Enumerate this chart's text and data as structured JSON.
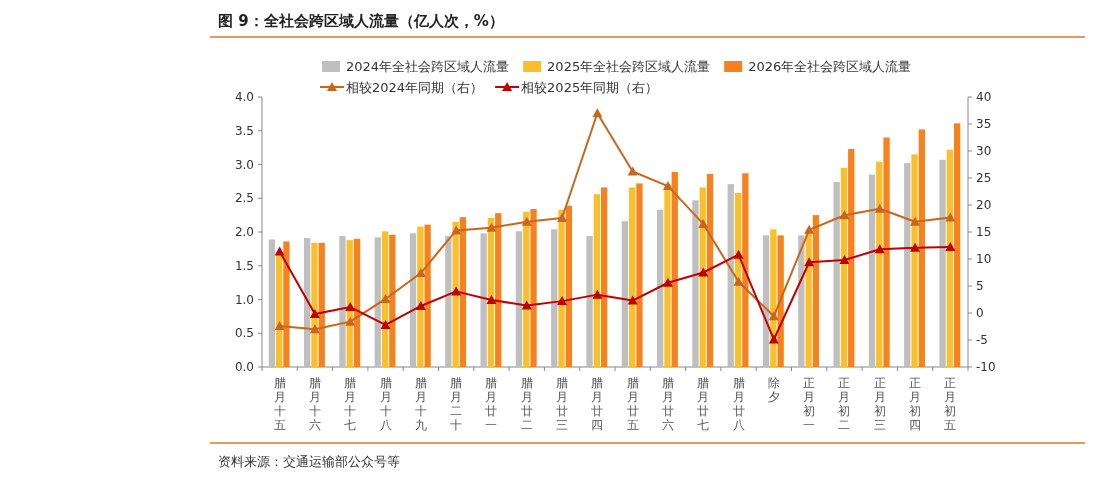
{
  "chart_data": {
    "type": "bar",
    "title": "图 9：全社会跨区域人流量（亿人次，%）",
    "categories": [
      "腊月十五",
      "腊月十六",
      "腊月十七",
      "腊月十八",
      "腊月十九",
      "腊月二十",
      "腊月廿一",
      "腊月廿二",
      "腊月廿三",
      "腊月廿四",
      "腊月廿五",
      "腊月廿六",
      "腊月廿七",
      "腊月廿八",
      "除夕",
      "正月初一",
      "正月初二",
      "正月初三",
      "正月初四",
      "正月初五"
    ],
    "series": [
      {
        "name": "2024年全社会跨区域人流量",
        "color": "#bfbfbf",
        "values": [
          1.89,
          1.91,
          1.94,
          1.92,
          1.98,
          1.94,
          1.98,
          2.01,
          2.04,
          1.94,
          2.16,
          2.33,
          2.47,
          2.71,
          1.95,
          1.95,
          2.74,
          2.85,
          3.02,
          3.07
        ]
      },
      {
        "name": "2025年全社会跨区域人流量",
        "color": "#fbbf2b",
        "values": [
          1.69,
          1.84,
          1.88,
          2.01,
          2.08,
          2.15,
          2.21,
          2.3,
          2.33,
          2.56,
          2.66,
          2.7,
          2.66,
          2.58,
          2.04,
          1.98,
          2.95,
          3.04,
          3.15,
          3.22
        ]
      },
      {
        "name": "2026年全社会跨区域人流量",
        "color": "#f5821f",
        "values": [
          1.86,
          1.84,
          1.9,
          1.96,
          2.11,
          2.22,
          2.28,
          2.34,
          2.39,
          2.66,
          2.72,
          2.89,
          2.86,
          2.87,
          1.95,
          2.25,
          3.23,
          3.4,
          3.52,
          3.61
        ]
      },
      {
        "name": "相较2024年同期（右）",
        "type": "line",
        "axis": "y2",
        "color": "#c8661e",
        "values": [
          -2.4,
          -3.0,
          -1.6,
          2.6,
          7.4,
          15.3,
          15.8,
          16.9,
          17.6,
          37,
          26.2,
          23.5,
          16.5,
          5.8,
          -0.6,
          15.4,
          18.1,
          19.3,
          16.9,
          17.7
        ]
      },
      {
        "name": "相较2025年同期（右）",
        "type": "line",
        "axis": "y2",
        "color": "#c00000",
        "values": [
          11.4,
          -0.2,
          1.1,
          -2.2,
          1.3,
          4,
          2.4,
          1.4,
          2.2,
          3.4,
          2.3,
          5.6,
          7.5,
          10.8,
          -4.9,
          9.4,
          9.8,
          11.8,
          12.1,
          12.2
        ]
      }
    ],
    "ylim": [
      0,
      4
    ],
    "yticks": [
      {
        "value": 0,
        "label": "0.0"
      },
      {
        "value": 0.5,
        "label": "0.5"
      },
      {
        "value": 1,
        "label": "1.0"
      },
      {
        "value": 1.5,
        "label": "1.5"
      },
      {
        "value": 2,
        "label": "2.0"
      },
      {
        "value": 2.5,
        "label": "2.5"
      },
      {
        "value": 3,
        "label": "3.0"
      },
      {
        "value": 3.5,
        "label": "3.5"
      },
      {
        "value": 4,
        "label": "4.0"
      }
    ],
    "y2lim": [
      -10,
      40
    ],
    "y2ticks": [
      -10,
      -5,
      0,
      5,
      10,
      15,
      20,
      25,
      30,
      35,
      40
    ],
    "marker": "triangle",
    "legend": "top",
    "annotations": [
      "资料来源：交通运输部公众号等"
    ]
  }
}
